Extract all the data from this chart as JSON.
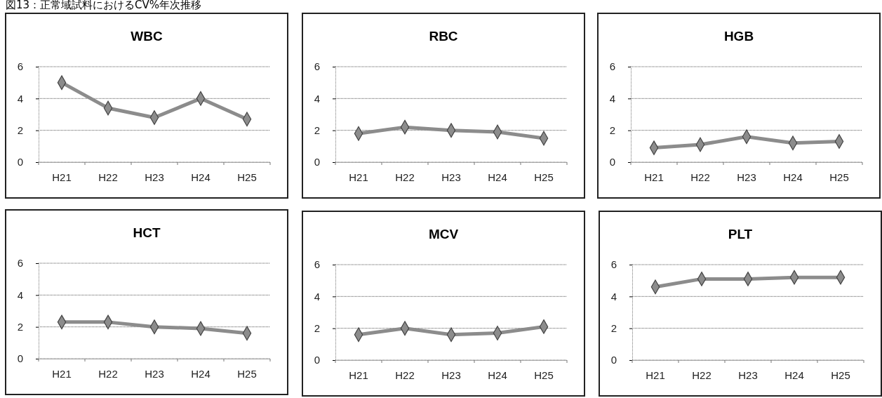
{
  "chart_data": [
    {
      "type": "line",
      "title": "WBC",
      "annotations": [
        "図13：正常域試料におけるCV%年次推移"
      ],
      "categories": [
        "H21",
        "H22",
        "H23",
        "H24",
        "H25"
      ],
      "series": [
        {
          "color": "#8c8c8c",
          "values": [
            5.0,
            3.4,
            2.8,
            4.0,
            2.7
          ]
        }
      ],
      "ylim": [
        0,
        6
      ],
      "yticks": [
        0,
        2,
        4,
        6
      ],
      "grid": "y",
      "marker": "diamond"
    },
    {
      "type": "line",
      "title": "RBC",
      "categories": [
        "H21",
        "H22",
        "H23",
        "H24",
        "H25"
      ],
      "series": [
        {
          "color": "#8c8c8c",
          "values": [
            1.8,
            2.2,
            2.0,
            1.9,
            1.5
          ]
        }
      ],
      "ylim": [
        0,
        6
      ],
      "yticks": [
        0,
        2,
        4,
        6
      ],
      "grid": "y",
      "marker": "diamond"
    },
    {
      "type": "line",
      "title": "HGB",
      "categories": [
        "H21",
        "H22",
        "H23",
        "H24",
        "H25"
      ],
      "series": [
        {
          "color": "#8c8c8c",
          "values": [
            0.9,
            1.1,
            1.6,
            1.2,
            1.3
          ]
        }
      ],
      "ylim": [
        0,
        6
      ],
      "yticks": [
        0,
        2,
        4,
        6
      ],
      "grid": "y",
      "marker": "diamond"
    },
    {
      "type": "line",
      "title": "HCT",
      "categories": [
        "H21",
        "H22",
        "H23",
        "H24",
        "H25"
      ],
      "series": [
        {
          "color": "#8c8c8c",
          "values": [
            2.3,
            2.3,
            2.0,
            1.9,
            1.6
          ]
        }
      ],
      "ylim": [
        0,
        6
      ],
      "yticks": [
        0,
        2,
        4,
        6
      ],
      "grid": "y",
      "marker": "diamond"
    },
    {
      "type": "line",
      "title": "MCV",
      "categories": [
        "H21",
        "H22",
        "H23",
        "H24",
        "H25"
      ],
      "series": [
        {
          "color": "#8c8c8c",
          "values": [
            1.6,
            2.0,
            1.6,
            1.7,
            2.1
          ]
        }
      ],
      "ylim": [
        0,
        6
      ],
      "yticks": [
        0,
        2,
        4,
        6
      ],
      "grid": "y",
      "marker": "diamond"
    },
    {
      "type": "line",
      "title": "PLT",
      "categories": [
        "H21",
        "H22",
        "H23",
        "H24",
        "H25"
      ],
      "series": [
        {
          "color": "#8c8c8c",
          "values": [
            4.6,
            5.1,
            5.1,
            5.2,
            5.2
          ]
        }
      ],
      "ylim": [
        0,
        6
      ],
      "yticks": [
        0,
        2,
        4,
        6
      ],
      "grid": "y",
      "marker": "diamond"
    }
  ]
}
